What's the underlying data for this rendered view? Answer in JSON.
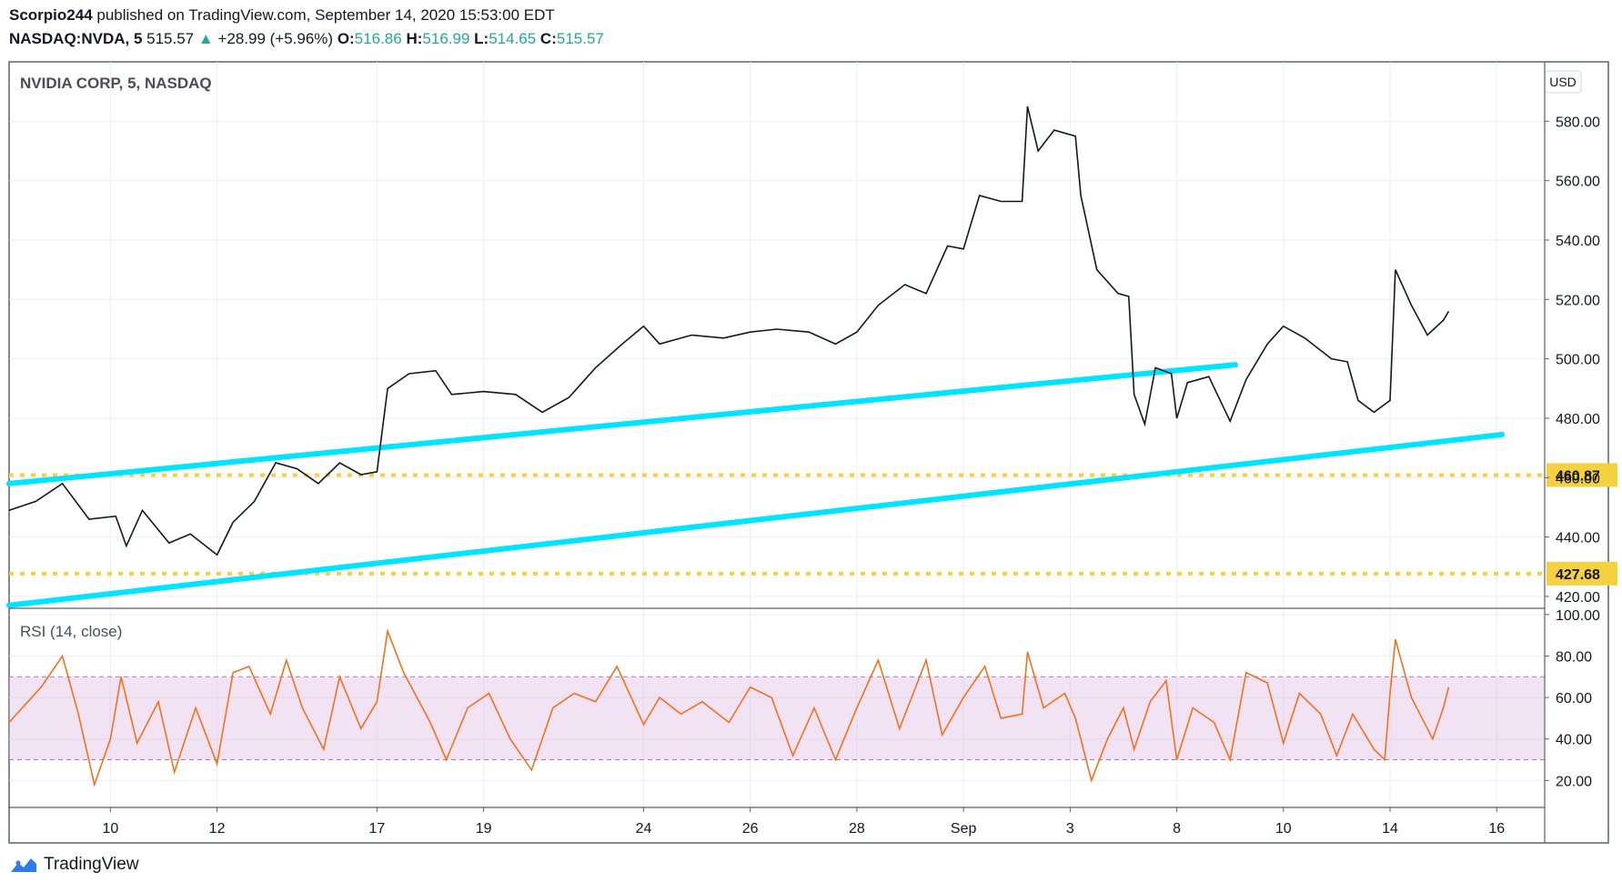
{
  "header": {
    "publisher": "Scorpio244",
    "published_text": "published on TradingView.com, September 14, 2020 15:53:00 EDT",
    "symbol": "NASDAQ:NVDA, 5",
    "last": "515.57",
    "change": "+28.99 (+5.96%)",
    "open_label": "O:",
    "open": "516.86",
    "high_label": "H:",
    "high": "516.99",
    "low_label": "L:",
    "low": "514.65",
    "close_label": "C:",
    "close": "515.57",
    "up_arrow": "▲"
  },
  "brand": {
    "name": "TradingView",
    "icon": "tradingview-logo-icon"
  },
  "colors": {
    "price": "#131722",
    "trendline": "#00e5ff",
    "support": "#f5d040",
    "rsi_line": "#f2711c",
    "rsi_band": "#e1bee7",
    "grid": "#e9ebef"
  },
  "chart_data": {
    "type": "line",
    "title": "NVIDIA CORP, 5, NASDAQ",
    "currency": "USD",
    "x_ticks": [
      "10",
      "12",
      "17",
      "19",
      "24",
      "26",
      "28",
      "Sep",
      "3",
      "8",
      "10",
      "14",
      "16"
    ],
    "y_ticks": [
      "420.00",
      "440.00",
      "460.00",
      "480.00",
      "500.00",
      "520.00",
      "540.00",
      "560.00",
      "580.00"
    ],
    "ylim": [
      416,
      600
    ],
    "x_range": [
      0,
      28.8
    ],
    "x_tick_index": [
      1.9,
      3.9,
      6.9,
      8.9,
      11.9,
      13.9,
      15.9,
      17.9,
      19.9,
      21.9,
      23.9,
      25.9,
      27.9
    ],
    "price_points": [
      [
        0,
        449
      ],
      [
        0.5,
        452
      ],
      [
        1.0,
        458
      ],
      [
        1.5,
        446
      ],
      [
        2.0,
        447
      ],
      [
        2.2,
        437
      ],
      [
        2.5,
        449
      ],
      [
        3.0,
        438
      ],
      [
        3.4,
        441
      ],
      [
        3.9,
        434
      ],
      [
        4.2,
        445
      ],
      [
        4.6,
        452
      ],
      [
        5.0,
        465
      ],
      [
        5.4,
        463
      ],
      [
        5.8,
        458
      ],
      [
        6.2,
        465
      ],
      [
        6.6,
        461
      ],
      [
        6.9,
        462
      ],
      [
        7.1,
        490
      ],
      [
        7.5,
        495
      ],
      [
        8.0,
        496
      ],
      [
        8.3,
        488
      ],
      [
        8.9,
        489
      ],
      [
        9.5,
        488
      ],
      [
        10.0,
        482
      ],
      [
        10.5,
        487
      ],
      [
        11.0,
        497
      ],
      [
        11.5,
        505
      ],
      [
        11.9,
        511
      ],
      [
        12.2,
        505
      ],
      [
        12.8,
        508
      ],
      [
        13.4,
        507
      ],
      [
        13.9,
        509
      ],
      [
        14.4,
        510
      ],
      [
        15.0,
        509
      ],
      [
        15.5,
        505
      ],
      [
        15.9,
        509
      ],
      [
        16.3,
        518
      ],
      [
        16.8,
        525
      ],
      [
        17.2,
        522
      ],
      [
        17.6,
        538
      ],
      [
        17.9,
        537
      ],
      [
        18.2,
        555
      ],
      [
        18.6,
        553
      ],
      [
        19.0,
        553
      ],
      [
        19.1,
        585
      ],
      [
        19.3,
        570
      ],
      [
        19.6,
        577
      ],
      [
        20.0,
        575
      ],
      [
        20.1,
        555
      ],
      [
        20.4,
        530
      ],
      [
        20.8,
        522
      ],
      [
        21.0,
        521
      ],
      [
        21.1,
        488
      ],
      [
        21.3,
        478
      ],
      [
        21.5,
        497
      ],
      [
        21.8,
        495
      ],
      [
        21.9,
        480
      ],
      [
        22.1,
        492
      ],
      [
        22.5,
        494
      ],
      [
        22.9,
        479
      ],
      [
        23.2,
        493
      ],
      [
        23.6,
        505
      ],
      [
        23.9,
        511
      ],
      [
        24.3,
        507
      ],
      [
        24.8,
        500
      ],
      [
        25.1,
        499
      ],
      [
        25.3,
        486
      ],
      [
        25.6,
        482
      ],
      [
        25.9,
        486
      ],
      [
        26.0,
        530
      ],
      [
        26.3,
        518
      ],
      [
        26.6,
        508
      ],
      [
        26.9,
        513
      ],
      [
        27.0,
        516
      ]
    ],
    "support_levels": [
      460.87,
      427.68
    ],
    "support_labels": [
      "460.87",
      "427.68"
    ],
    "trendlines": [
      {
        "x1": 0,
        "y1": 458.0,
        "x2": 23.0,
        "y2": 498.0
      },
      {
        "x1": 0,
        "y1": 417.0,
        "x2": 28.0,
        "y2": 474.5
      }
    ],
    "rsi": {
      "label": "RSI (14, close)",
      "ylim": [
        7,
        103
      ],
      "y_ticks": [
        "20.00",
        "40.00",
        "60.00",
        "80.00",
        "100.00"
      ],
      "band": [
        30,
        70
      ],
      "points": [
        [
          0,
          48
        ],
        [
          0.6,
          65
        ],
        [
          1.0,
          80
        ],
        [
          1.3,
          52
        ],
        [
          1.6,
          18
        ],
        [
          1.9,
          40
        ],
        [
          2.1,
          70
        ],
        [
          2.4,
          38
        ],
        [
          2.8,
          58
        ],
        [
          3.1,
          24
        ],
        [
          3.5,
          55
        ],
        [
          3.9,
          28
        ],
        [
          4.2,
          72
        ],
        [
          4.5,
          75
        ],
        [
          4.9,
          52
        ],
        [
          5.2,
          78
        ],
        [
          5.5,
          55
        ],
        [
          5.9,
          35
        ],
        [
          6.2,
          70
        ],
        [
          6.6,
          45
        ],
        [
          6.9,
          58
        ],
        [
          7.1,
          92
        ],
        [
          7.4,
          72
        ],
        [
          7.9,
          48
        ],
        [
          8.2,
          30
        ],
        [
          8.6,
          55
        ],
        [
          9.0,
          62
        ],
        [
          9.4,
          40
        ],
        [
          9.8,
          25
        ],
        [
          10.2,
          55
        ],
        [
          10.6,
          62
        ],
        [
          11.0,
          58
        ],
        [
          11.4,
          75
        ],
        [
          11.9,
          47
        ],
        [
          12.2,
          60
        ],
        [
          12.6,
          52
        ],
        [
          13.0,
          58
        ],
        [
          13.5,
          48
        ],
        [
          13.9,
          65
        ],
        [
          14.3,
          60
        ],
        [
          14.7,
          32
        ],
        [
          15.1,
          55
        ],
        [
          15.5,
          30
        ],
        [
          15.9,
          55
        ],
        [
          16.3,
          78
        ],
        [
          16.7,
          45
        ],
        [
          17.2,
          78
        ],
        [
          17.5,
          42
        ],
        [
          17.9,
          60
        ],
        [
          18.3,
          75
        ],
        [
          18.6,
          50
        ],
        [
          19.0,
          52
        ],
        [
          19.1,
          82
        ],
        [
          19.4,
          55
        ],
        [
          19.8,
          62
        ],
        [
          20.0,
          50
        ],
        [
          20.3,
          20
        ],
        [
          20.6,
          40
        ],
        [
          20.9,
          55
        ],
        [
          21.1,
          35
        ],
        [
          21.4,
          58
        ],
        [
          21.7,
          68
        ],
        [
          21.9,
          30
        ],
        [
          22.2,
          55
        ],
        [
          22.6,
          48
        ],
        [
          22.9,
          30
        ],
        [
          23.2,
          72
        ],
        [
          23.6,
          67
        ],
        [
          23.9,
          38
        ],
        [
          24.2,
          62
        ],
        [
          24.6,
          52
        ],
        [
          24.9,
          32
        ],
        [
          25.2,
          52
        ],
        [
          25.6,
          35
        ],
        [
          25.8,
          30
        ],
        [
          25.9,
          62
        ],
        [
          26.0,
          88
        ],
        [
          26.3,
          60
        ],
        [
          26.7,
          40
        ],
        [
          26.9,
          55
        ],
        [
          27.0,
          65
        ]
      ]
    }
  }
}
